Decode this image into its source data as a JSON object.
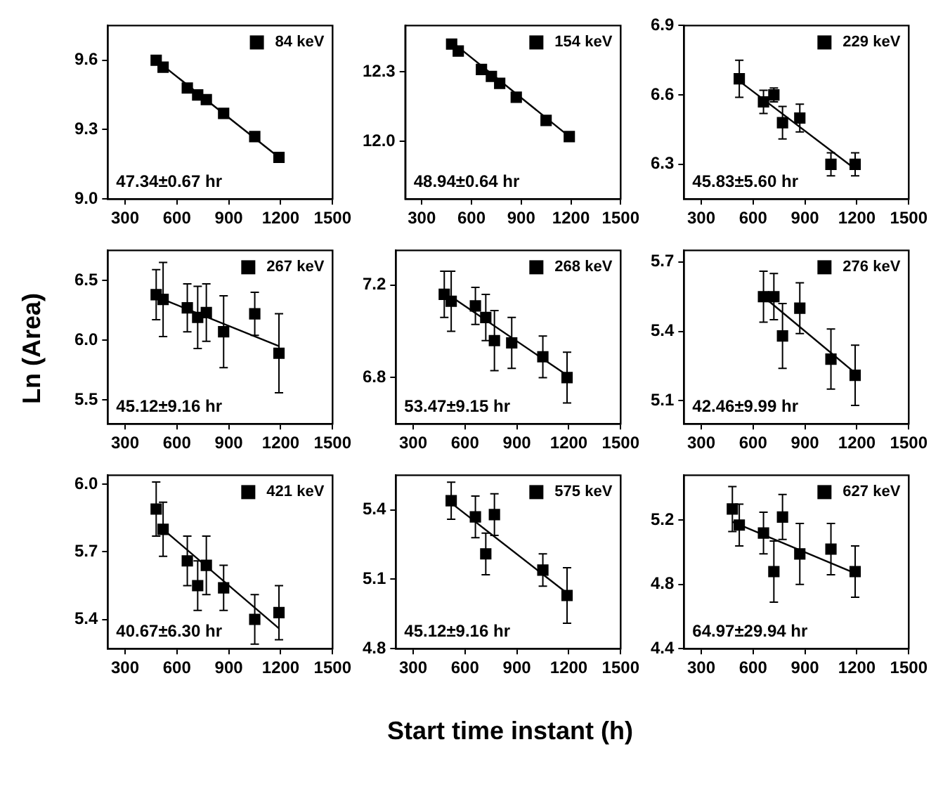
{
  "chart_data": [
    {
      "type": "scatter",
      "x": [
        480,
        520,
        660,
        720,
        770,
        870,
        1050,
        1190
      ],
      "xlim": [
        200,
        1500
      ],
      "xticks": [
        300,
        600,
        900,
        1200,
        1500
      ],
      "ylim": [
        9.0,
        9.75
      ],
      "yticks": [
        {
          "value": 9.0,
          "label": "9.0"
        },
        9.3,
        9.6
      ],
      "legend": "top right",
      "annotations": [
        "47.34±0.67 hr"
      ],
      "series": [
        {
          "name": "84 keV",
          "color": "#000000",
          "marker": "square",
          "values": [
            9.6,
            9.57,
            9.48,
            9.45,
            9.43,
            9.37,
            9.27,
            9.18
          ]
        },
        {
          "type": "line",
          "color": "#000000",
          "marker": "none",
          "x": [
            480,
            1190
          ],
          "values": [
            9.6,
            9.18
          ]
        }
      ]
    },
    {
      "type": "scatter",
      "x": [
        480,
        520,
        660,
        720,
        770,
        870,
        1050,
        1190
      ],
      "xlim": [
        200,
        1500
      ],
      "xticks": [
        300,
        600,
        900,
        1200,
        1500
      ],
      "ylim": [
        11.75,
        12.5
      ],
      "yticks": [
        {
          "value": 12.0,
          "label": "12.0"
        },
        12.3
      ],
      "legend": "top right",
      "annotations": [
        "48.94±0.64 hr"
      ],
      "series": [
        {
          "name": "154 keV",
          "color": "#000000",
          "marker": "square",
          "values": [
            12.42,
            12.39,
            12.31,
            12.28,
            12.25,
            12.19,
            12.09,
            12.02
          ]
        },
        {
          "type": "line",
          "color": "#000000",
          "marker": "none",
          "x": [
            480,
            1190
          ],
          "values": [
            12.43,
            12.02
          ]
        }
      ]
    },
    {
      "type": "scatter",
      "x": [
        520,
        660,
        720,
        770,
        870,
        1050,
        1190
      ],
      "xlim": [
        200,
        1500
      ],
      "xticks": [
        300,
        600,
        900,
        1200,
        1500
      ],
      "ylim": [
        6.15,
        6.9
      ],
      "yticks": [
        6.3,
        6.6,
        6.9
      ],
      "legend": "top right",
      "annotations": [
        "45.83±5.60 hr"
      ],
      "series": [
        {
          "name": "229 keV",
          "color": "#000000",
          "marker": "square",
          "values": [
            6.67,
            6.57,
            6.6,
            6.48,
            6.5,
            6.3,
            6.3
          ],
          "errors": [
            0.08,
            0.05,
            0.03,
            0.07,
            0.06,
            0.05,
            0.05
          ]
        },
        {
          "type": "line",
          "color": "#000000",
          "marker": "none",
          "x": [
            520,
            1190
          ],
          "values": [
            6.66,
            6.28
          ]
        }
      ]
    },
    {
      "type": "scatter",
      "x": [
        480,
        520,
        660,
        720,
        770,
        870,
        1050,
        1190
      ],
      "xlim": [
        200,
        1500
      ],
      "xticks": [
        300,
        600,
        900,
        1200,
        1500
      ],
      "ylim": [
        5.3,
        6.75
      ],
      "yticks": [
        5.5,
        {
          "value": 6.0,
          "label": "6.0"
        },
        6.5
      ],
      "legend": "top right",
      "annotations": [
        "45.12±9.16 hr"
      ],
      "ylabel": "Ln (Area)",
      "series": [
        {
          "name": "267 keV",
          "color": "#000000",
          "marker": "square",
          "values": [
            6.38,
            6.34,
            6.27,
            6.19,
            6.23,
            6.07,
            6.22,
            5.89
          ],
          "errors": [
            0.21,
            0.31,
            0.2,
            0.26,
            0.24,
            0.3,
            0.18,
            0.33
          ]
        },
        {
          "type": "line",
          "color": "#000000",
          "marker": "none",
          "x": [
            520,
            1190
          ],
          "values": [
            6.34,
            5.95
          ]
        }
      ]
    },
    {
      "type": "scatter",
      "x": [
        480,
        520,
        660,
        720,
        770,
        870,
        1050,
        1190
      ],
      "xlim": [
        200,
        1500
      ],
      "xticks": [
        300,
        600,
        900,
        1200,
        1500
      ],
      "ylim": [
        6.6,
        7.35
      ],
      "yticks": [
        6.8,
        7.2
      ],
      "legend": "top right",
      "annotations": [
        "53.47±9.15 hr"
      ],
      "series": [
        {
          "name": "268 keV",
          "color": "#000000",
          "marker": "square",
          "values": [
            7.16,
            7.13,
            7.11,
            7.06,
            6.96,
            6.95,
            6.89,
            6.8
          ],
          "errors": [
            0.1,
            0.13,
            0.08,
            0.1,
            0.13,
            0.11,
            0.09,
            0.11
          ]
        },
        {
          "type": "line",
          "color": "#000000",
          "marker": "none",
          "x": [
            520,
            1190
          ],
          "values": [
            7.15,
            6.81
          ]
        }
      ]
    },
    {
      "type": "scatter",
      "x": [
        660,
        720,
        770,
        870,
        1050,
        1190
      ],
      "xlim": [
        200,
        1500
      ],
      "xticks": [
        300,
        600,
        900,
        1200,
        1500
      ],
      "ylim": [
        5.0,
        5.75
      ],
      "yticks": [
        5.1,
        5.4,
        5.7
      ],
      "legend": "top right",
      "annotations": [
        "42.46±9.99 hr"
      ],
      "series": [
        {
          "name": "276 keV",
          "color": "#000000",
          "marker": "square",
          "values": [
            5.55,
            5.55,
            5.38,
            5.5,
            5.28,
            5.21
          ],
          "errors": [
            0.11,
            0.1,
            0.14,
            0.11,
            0.13,
            0.13
          ]
        },
        {
          "type": "line",
          "color": "#000000",
          "marker": "none",
          "x": [
            660,
            1190
          ],
          "values": [
            5.55,
            5.22
          ]
        }
      ]
    },
    {
      "type": "scatter",
      "x": [
        480,
        520,
        660,
        720,
        770,
        870,
        1050,
        1190
      ],
      "xlim": [
        200,
        1500
      ],
      "xticks": [
        300,
        600,
        900,
        1200,
        1500
      ],
      "ylim": [
        5.27,
        6.04
      ],
      "yticks": [
        5.4,
        5.7,
        {
          "value": 6.0,
          "label": "6.0"
        }
      ],
      "legend": "top right",
      "annotations": [
        "40.67±6.30 hr"
      ],
      "series": [
        {
          "name": "421 keV",
          "color": "#000000",
          "marker": "square",
          "values": [
            5.89,
            5.8,
            5.66,
            5.55,
            5.64,
            5.54,
            5.4,
            5.43
          ],
          "errors": [
            0.12,
            0.12,
            0.11,
            0.11,
            0.13,
            0.1,
            0.11,
            0.12
          ]
        },
        {
          "type": "line",
          "color": "#000000",
          "marker": "none",
          "x": [
            520,
            1190
          ],
          "values": [
            5.8,
            5.36
          ]
        }
      ]
    },
    {
      "type": "scatter",
      "x": [
        520,
        660,
        720,
        770,
        1050,
        1190
      ],
      "xlim": [
        200,
        1500
      ],
      "xticks": [
        300,
        600,
        900,
        1200,
        1500
      ],
      "ylim": [
        4.8,
        5.55
      ],
      "yticks": [
        4.8,
        5.1,
        5.4
      ],
      "legend": "top right",
      "annotations": [
        "45.12±9.16 hr"
      ],
      "xlabel": "Start time instant (h)",
      "series": [
        {
          "name": "575 keV",
          "color": "#000000",
          "marker": "square",
          "values": [
            5.44,
            5.37,
            5.21,
            5.38,
            5.14,
            5.03
          ],
          "errors": [
            0.08,
            0.09,
            0.09,
            0.09,
            0.07,
            0.12
          ]
        },
        {
          "type": "line",
          "color": "#000000",
          "marker": "none",
          "x": [
            520,
            1190
          ],
          "values": [
            5.43,
            5.04
          ]
        }
      ]
    },
    {
      "type": "scatter",
      "x": [
        480,
        520,
        660,
        720,
        770,
        870,
        1050,
        1190
      ],
      "xlim": [
        200,
        1500
      ],
      "xticks": [
        300,
        600,
        900,
        1200,
        1500
      ],
      "ylim": [
        4.4,
        5.48
      ],
      "yticks": [
        4.4,
        4.8,
        5.2
      ],
      "legend": "top right",
      "annotations": [
        "64.97±29.94 hr"
      ],
      "series": [
        {
          "name": "627 keV",
          "color": "#000000",
          "marker": "square",
          "values": [
            5.27,
            5.17,
            5.12,
            4.88,
            5.22,
            4.99,
            5.02,
            4.88
          ],
          "errors": [
            0.14,
            0.13,
            0.13,
            0.19,
            0.14,
            0.19,
            0.16,
            0.16
          ]
        },
        {
          "type": "line",
          "color": "#000000",
          "marker": "none",
          "x": [
            480,
            1190
          ],
          "values": [
            5.19,
            4.87
          ]
        }
      ]
    }
  ]
}
